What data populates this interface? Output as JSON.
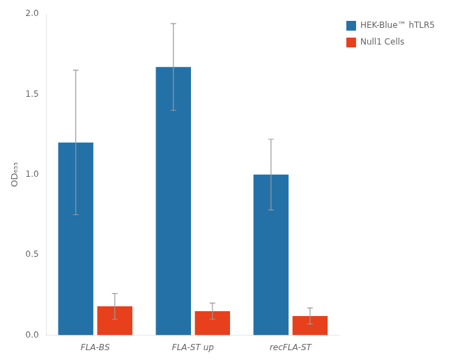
{
  "chart_data": {
    "type": "bar",
    "ylabel": "OD₆₅₅",
    "categories": [
      "FLA-BS",
      "FLA-ST up",
      "recFLA-ST"
    ],
    "series": [
      {
        "name": "HEK-Blue™ hTLR5",
        "color": "#2471a8",
        "values": [
          1.2,
          1.67,
          1.0
        ],
        "errors": [
          0.45,
          0.27,
          0.22
        ]
      },
      {
        "name": "Null1 Cells",
        "color": "#e8401c",
        "values": [
          0.18,
          0.15,
          0.12
        ],
        "errors": [
          0.08,
          0.05,
          0.05
        ]
      }
    ],
    "ylim": [
      0,
      2.0
    ],
    "yticks": [
      {
        "value": 0,
        "label": "0.0"
      },
      0.5,
      {
        "value": 1.0,
        "label": "1.0"
      },
      1.5,
      {
        "value": 2.0,
        "label": "2.0"
      }
    ],
    "grid": false,
    "legend": "right"
  }
}
